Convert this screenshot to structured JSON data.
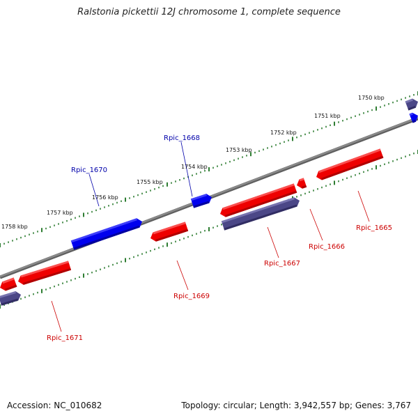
{
  "title": "Ralstonia pickettii 12J chromosome 1, complete sequence",
  "accession_text": "Accession: NC_010682",
  "summary_text": "Topology: circular; Length: 3,942,557 bp; Genes: 3,767",
  "colors": {
    "backbone": "#8a8a8a",
    "tick": "#2e7d32",
    "forward_gene": "#0000ee",
    "reverse_gene": "#ee0000",
    "reverse_other": "#4b4787",
    "forward_label": "#0000aa",
    "reverse_label": "#cc0000"
  },
  "scale_labels": [
    "1750 kbp",
    "1751 kbp",
    "1752 kbp",
    "1753 kbp",
    "1754 kbp",
    "1755 kbp",
    "1756 kbp",
    "1757 kbp",
    "1758 kbp"
  ],
  "gene_labels": [
    {
      "name": "Rpic_1665",
      "strand": "reverse"
    },
    {
      "name": "Rpic_1666",
      "strand": "reverse"
    },
    {
      "name": "Rpic_1667",
      "strand": "reverse"
    },
    {
      "name": "Rpic_1668",
      "strand": "forward"
    },
    {
      "name": "Rpic_1669",
      "strand": "reverse"
    },
    {
      "name": "Rpic_1670",
      "strand": "forward"
    },
    {
      "name": "Rpic_1671",
      "strand": "reverse"
    }
  ]
}
